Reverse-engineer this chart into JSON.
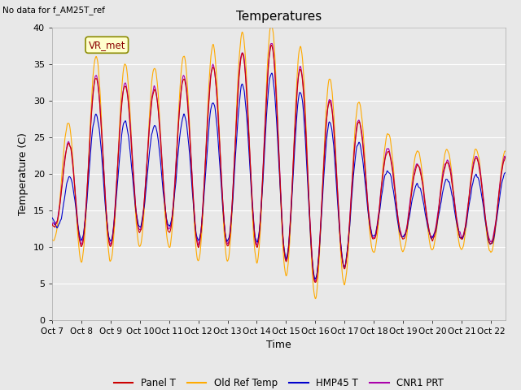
{
  "title": "Temperatures",
  "xlabel": "Time",
  "ylabel": "Temperature (C)",
  "annotation_text": "No data for f_AM25T_ref",
  "legend_box_text": "VR_met",
  "ylim": [
    0,
    40
  ],
  "xlim": [
    0,
    15.5
  ],
  "x_tick_labels": [
    "Oct 7",
    "Oct 8",
    "Oct 9",
    "Oct 10",
    "Oct 11",
    "Oct 12",
    "Oct 13",
    "Oct 14",
    "Oct 15",
    "Oct 16",
    "Oct 17",
    "Oct 18",
    "Oct 19",
    "Oct 20",
    "Oct 21",
    "Oct 22"
  ],
  "x_tick_positions": [
    0,
    1,
    2,
    3,
    4,
    5,
    6,
    7,
    8,
    9,
    10,
    11,
    12,
    13,
    14,
    15
  ],
  "y_tick_labels": [
    "0",
    "5",
    "10",
    "15",
    "20",
    "25",
    "30",
    "35",
    "40"
  ],
  "y_tick_positions": [
    0,
    5,
    10,
    15,
    20,
    25,
    30,
    35,
    40
  ],
  "bg_color": "#e8e8e8",
  "fig_color": "#e8e8e8",
  "line_colors": {
    "panel_t": "#cc0000",
    "old_ref": "#ffaa00",
    "hmp45": "#0000cc",
    "cnr1": "#aa00aa"
  },
  "legend_entries": [
    "Panel T",
    "Old Ref Temp",
    "HMP45 T",
    "CNR1 PRT"
  ]
}
